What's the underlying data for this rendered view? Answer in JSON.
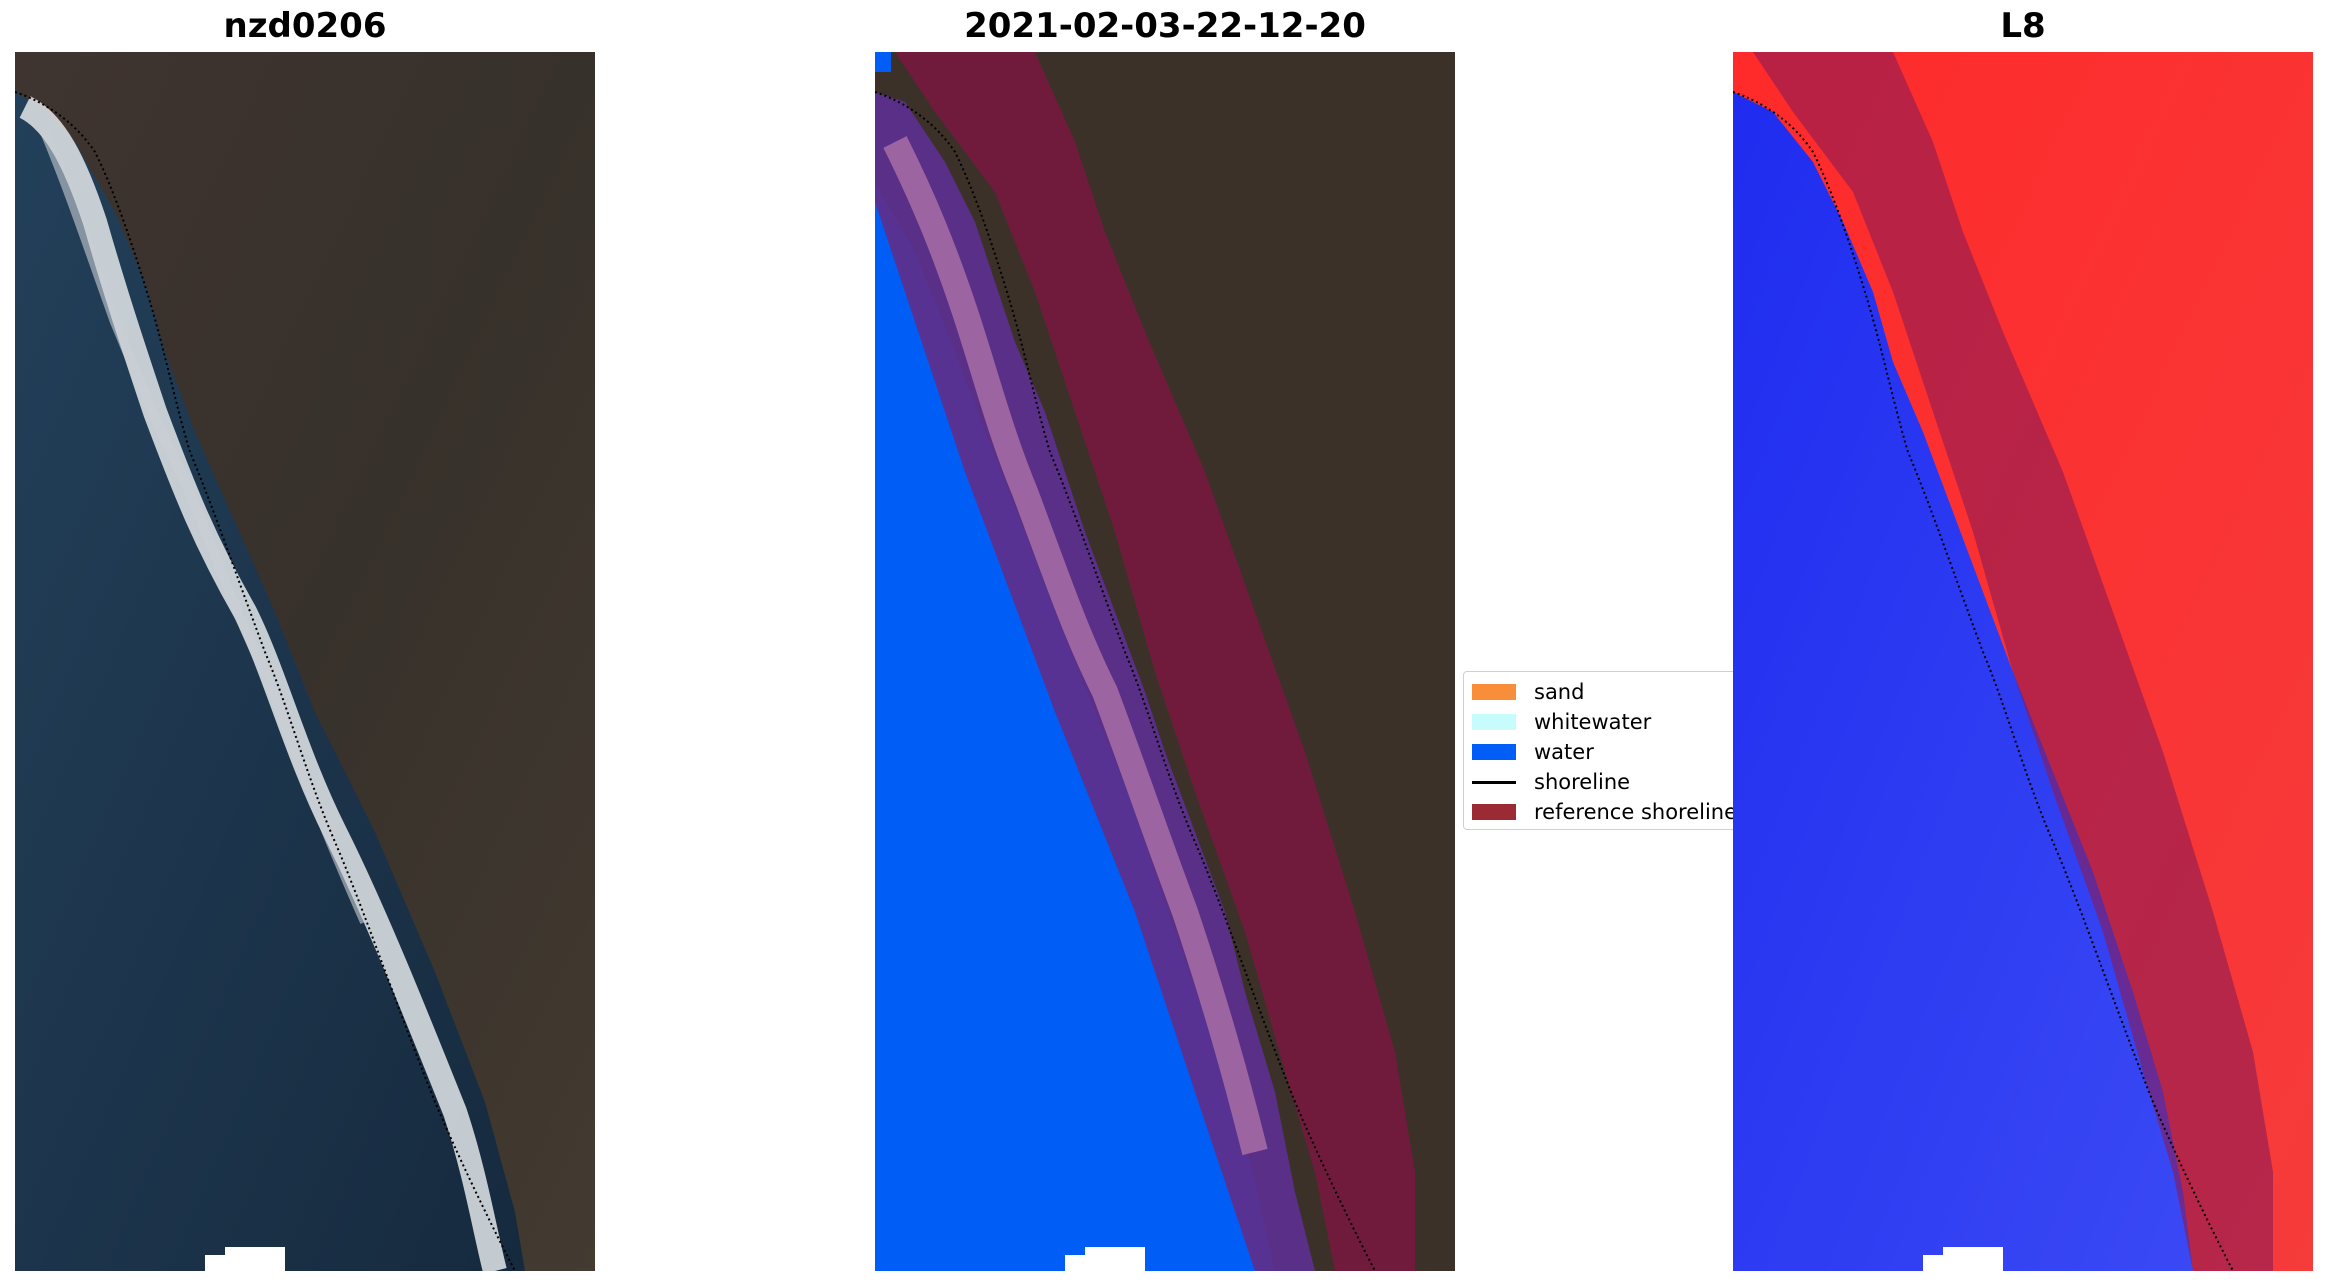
{
  "panels": [
    {
      "title": "nzd0206"
    },
    {
      "title": "2021-02-03-22-12-20"
    },
    {
      "title": "L8"
    }
  ],
  "legend": {
    "items": [
      {
        "label": "sand",
        "color": "#f98e3a",
        "kind": "patch"
      },
      {
        "label": "whitewater",
        "color": "#c8fbfc",
        "kind": "patch"
      },
      {
        "label": "water",
        "color": "#005ef7",
        "kind": "patch"
      },
      {
        "label": "shoreline",
        "color": "#000000",
        "kind": "line"
      },
      {
        "label": "reference shoreline",
        "color": "#9a2a34",
        "kind": "patch"
      }
    ]
  },
  "colors": {
    "ocean_dark": "#1d3349",
    "land_dark": "#3b2f2a",
    "surf_white": "#d9dde0",
    "classified_water": "#005ef7",
    "classified_land_overlay": "#5b2f8e",
    "reference_buffer": "#7a1840",
    "index_water": "#2b2cf0",
    "index_land": "#f5262a"
  }
}
